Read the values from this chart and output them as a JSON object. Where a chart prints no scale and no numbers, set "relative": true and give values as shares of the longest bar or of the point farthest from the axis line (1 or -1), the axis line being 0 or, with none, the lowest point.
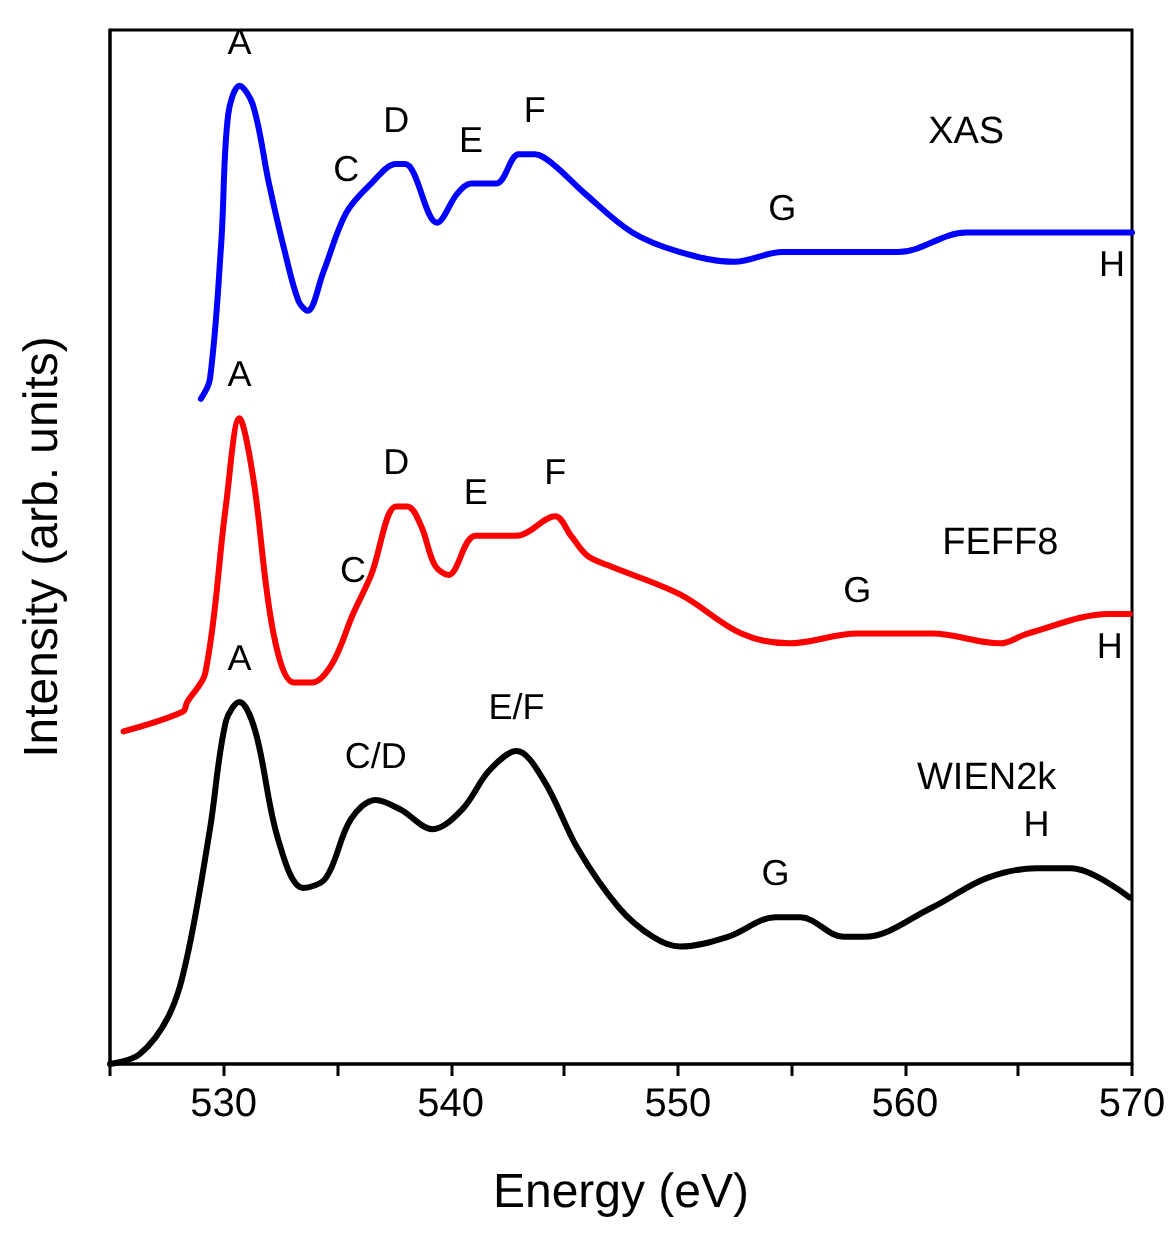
{
  "chart_data": {
    "type": "line",
    "relative": true,
    "xlabel": "Energy (eV)",
    "ylabel": "Intensity (arb. units)",
    "xlim": [
      525,
      570
    ],
    "xticks": [
      {
        "value": 525,
        "label": null
      },
      530,
      {
        "value": 535,
        "label": null
      },
      540,
      {
        "value": 545,
        "label": null
      },
      550,
      {
        "value": 555,
        "label": null
      },
      560,
      {
        "value": 565,
        "label": null
      },
      570
    ],
    "grid": false,
    "marker": "none",
    "line_style": "solid",
    "series": [
      {
        "name": "XAS",
        "color": "#0000ff",
        "x": [
          529.0,
          529.4,
          529.9,
          530.2,
          530.7,
          531.3,
          532.0,
          532.7,
          533.3,
          533.7,
          534.4,
          535.4,
          536.5,
          537.6,
          538.0,
          539.4,
          540.3,
          540.9,
          542.0,
          543.0,
          543.7,
          544.5,
          545.9,
          548.0,
          550.1,
          552.5,
          554.6,
          559.7,
          562.7,
          567.3,
          570.0
        ],
        "values": [
          0.68,
          0.7,
          0.84,
          0.97,
          1.0,
          0.98,
          0.9,
          0.83,
          0.78,
          0.77,
          0.81,
          0.87,
          0.9,
          0.92,
          0.92,
          0.86,
          0.89,
          0.9,
          0.9,
          0.93,
          0.93,
          0.92,
          0.89,
          0.85,
          0.83,
          0.82,
          0.83,
          0.83,
          0.85,
          0.85,
          0.85
        ]
      },
      {
        "name": "FEFF8",
        "color": "#ff0000",
        "x": [
          525.6,
          528.2,
          528.4,
          529.2,
          530.1,
          530.7,
          531.3,
          532.2,
          533.1,
          533.9,
          534.8,
          535.7,
          536.5,
          537.6,
          538.1,
          538.7,
          539.3,
          539.9,
          541.1,
          542.9,
          544.6,
          545.3,
          546.0,
          546.9,
          550.1,
          552.8,
          554.9,
          557.9,
          559.7,
          561.2,
          564.2,
          565.4,
          569.0,
          569.9
        ],
        "values": [
          0.34,
          0.36,
          0.37,
          0.4,
          0.57,
          0.66,
          0.6,
          0.44,
          0.39,
          0.39,
          0.41,
          0.46,
          0.5,
          0.57,
          0.57,
          0.55,
          0.51,
          0.5,
          0.54,
          0.54,
          0.56,
          0.54,
          0.52,
          0.51,
          0.48,
          0.44,
          0.43,
          0.44,
          0.44,
          0.44,
          0.43,
          0.44,
          0.46,
          0.46
        ]
      },
      {
        "name": "WIEN2k",
        "color": "#000000",
        "x": [
          525.0,
          526.3,
          527.6,
          528.4,
          529.4,
          530.1,
          530.7,
          531.4,
          532.4,
          533.5,
          534.5,
          535.6,
          536.7,
          537.8,
          539.2,
          540.5,
          541.7,
          542.9,
          544.1,
          545.6,
          547.4,
          548.9,
          550.1,
          552.2,
          554.3,
          555.4,
          557.3,
          558.2,
          561.2,
          563.6,
          565.8,
          567.3,
          569.9
        ],
        "values": [
          0.0,
          0.01,
          0.05,
          0.11,
          0.24,
          0.35,
          0.37,
          0.34,
          0.23,
          0.18,
          0.19,
          0.25,
          0.27,
          0.26,
          0.24,
          0.26,
          0.3,
          0.32,
          0.29,
          0.22,
          0.16,
          0.13,
          0.12,
          0.13,
          0.15,
          0.15,
          0.13,
          0.13,
          0.16,
          0.19,
          0.2,
          0.2,
          0.17
        ]
      }
    ],
    "annotations": [
      {
        "text": "A",
        "x": 530.7,
        "y": 1.0
      },
      {
        "text": "C",
        "x": 535.4,
        "y": 0.87
      },
      {
        "text": "D",
        "x": 537.6,
        "y": 0.92
      },
      {
        "text": "E",
        "x": 540.9,
        "y": 0.9
      },
      {
        "text": "F",
        "x": 543.7,
        "y": 0.93
      },
      {
        "text": "G",
        "x": 554.6,
        "y": 0.83
      },
      {
        "text": "H",
        "x": 570.0,
        "y": 0.85
      },
      {
        "text": "A",
        "x": 530.7,
        "y": 0.66
      },
      {
        "text": "C",
        "x": 535.7,
        "y": 0.46
      },
      {
        "text": "D",
        "x": 537.6,
        "y": 0.57
      },
      {
        "text": "E",
        "x": 541.1,
        "y": 0.54
      },
      {
        "text": "F",
        "x": 544.6,
        "y": 0.56
      },
      {
        "text": "G",
        "x": 557.9,
        "y": 0.44
      },
      {
        "text": "H",
        "x": 569.9,
        "y": 0.46
      },
      {
        "text": "A",
        "x": 530.7,
        "y": 0.37
      },
      {
        "text": "C/D",
        "x": 536.7,
        "y": 0.27
      },
      {
        "text": "E/F",
        "x": 542.9,
        "y": 0.32
      },
      {
        "text": "G",
        "x": 554.3,
        "y": 0.15
      },
      {
        "text": "H",
        "x": 565.8,
        "y": 0.2
      }
    ]
  }
}
